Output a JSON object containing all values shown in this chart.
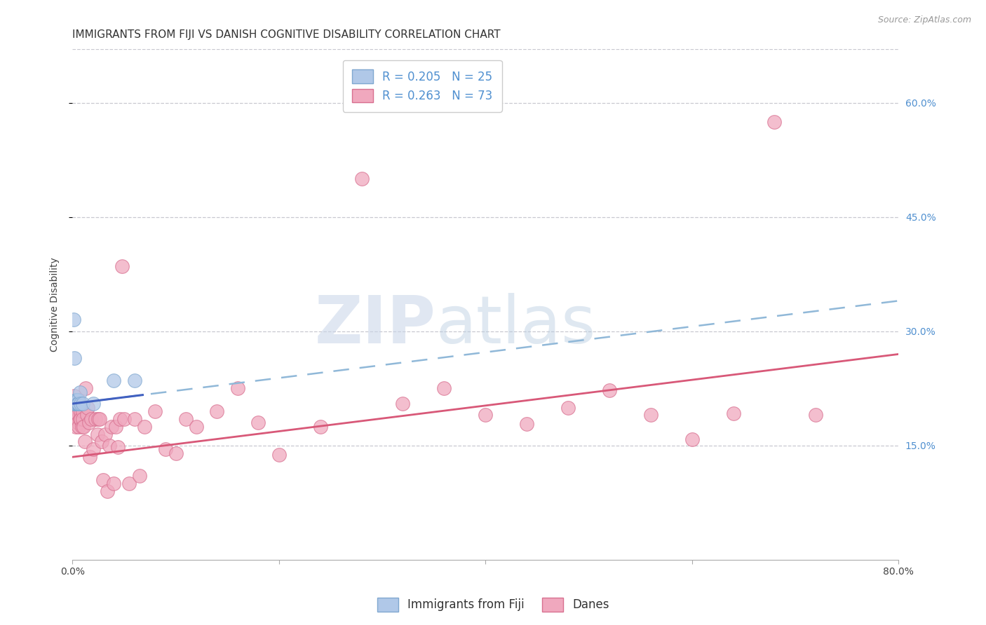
{
  "title": "IMMIGRANTS FROM FIJI VS DANISH COGNITIVE DISABILITY CORRELATION CHART",
  "source": "Source: ZipAtlas.com",
  "ylabel": "Cognitive Disability",
  "xlim": [
    0.0,
    0.8
  ],
  "ylim": [
    0.0,
    0.67
  ],
  "xticks": [
    0.0,
    0.2,
    0.4,
    0.6,
    0.8
  ],
  "xtick_labels": [
    "0.0%",
    "",
    "",
    "",
    "80.0%"
  ],
  "ytick_vals_right": [
    0.15,
    0.3,
    0.45,
    0.6
  ],
  "ytick_labels_right": [
    "15.0%",
    "30.0%",
    "45.0%",
    "60.0%"
  ],
  "grid_color": "#c8c8d0",
  "fiji_color": "#b0c8e8",
  "fiji_edge_color": "#80a8d0",
  "danes_color": "#f0a8be",
  "danes_edge_color": "#d87090",
  "fiji_trend_color": "#4060c0",
  "danes_trend_color": "#d85878",
  "fiji_dashed_color": "#90b8d8",
  "legend_r_fiji": "R = 0.205",
  "legend_n_fiji": "N = 25",
  "legend_r_danes": "R = 0.263",
  "legend_n_danes": "N = 73",
  "legend_label_fiji": "Immigrants from Fiji",
  "legend_label_danes": "Danes",
  "fiji_x": [
    0.001,
    0.002,
    0.002,
    0.002,
    0.003,
    0.003,
    0.003,
    0.003,
    0.004,
    0.004,
    0.004,
    0.004,
    0.005,
    0.005,
    0.005,
    0.005,
    0.006,
    0.006,
    0.006,
    0.007,
    0.008,
    0.01,
    0.02,
    0.04,
    0.06
  ],
  "fiji_y": [
    0.315,
    0.265,
    0.205,
    0.205,
    0.205,
    0.21,
    0.205,
    0.205,
    0.205,
    0.21,
    0.205,
    0.21,
    0.205,
    0.205,
    0.21,
    0.205,
    0.205,
    0.205,
    0.205,
    0.22,
    0.205,
    0.205,
    0.205,
    0.235,
    0.235
  ],
  "danes_x": [
    0.001,
    0.002,
    0.002,
    0.002,
    0.003,
    0.003,
    0.003,
    0.004,
    0.004,
    0.005,
    0.005,
    0.005,
    0.005,
    0.006,
    0.006,
    0.007,
    0.007,
    0.008,
    0.008,
    0.009,
    0.01,
    0.01,
    0.011,
    0.012,
    0.013,
    0.014,
    0.015,
    0.016,
    0.017,
    0.018,
    0.02,
    0.022,
    0.024,
    0.025,
    0.026,
    0.028,
    0.03,
    0.032,
    0.034,
    0.036,
    0.038,
    0.04,
    0.042,
    0.044,
    0.046,
    0.048,
    0.05,
    0.055,
    0.06,
    0.065,
    0.07,
    0.08,
    0.09,
    0.1,
    0.11,
    0.12,
    0.14,
    0.16,
    0.18,
    0.2,
    0.24,
    0.28,
    0.32,
    0.36,
    0.4,
    0.44,
    0.48,
    0.52,
    0.56,
    0.6,
    0.64,
    0.68,
    0.72
  ],
  "danes_y": [
    0.205,
    0.215,
    0.185,
    0.2,
    0.205,
    0.195,
    0.175,
    0.195,
    0.185,
    0.2,
    0.185,
    0.19,
    0.18,
    0.175,
    0.21,
    0.185,
    0.205,
    0.195,
    0.185,
    0.175,
    0.195,
    0.185,
    0.175,
    0.155,
    0.225,
    0.19,
    0.2,
    0.18,
    0.135,
    0.185,
    0.145,
    0.185,
    0.165,
    0.185,
    0.185,
    0.155,
    0.105,
    0.165,
    0.09,
    0.15,
    0.175,
    0.1,
    0.175,
    0.148,
    0.185,
    0.385,
    0.185,
    0.1,
    0.185,
    0.11,
    0.175,
    0.195,
    0.145,
    0.14,
    0.185,
    0.175,
    0.195,
    0.225,
    0.18,
    0.138,
    0.175,
    0.5,
    0.205,
    0.225,
    0.19,
    0.178,
    0.2,
    0.223,
    0.19,
    0.158,
    0.192,
    0.575,
    0.19
  ],
  "watermark_zip": "ZIP",
  "watermark_atlas": "atlas",
  "title_fontsize": 11,
  "axis_label_fontsize": 10,
  "tick_fontsize": 10,
  "legend_fontsize": 12,
  "source_fontsize": 9
}
